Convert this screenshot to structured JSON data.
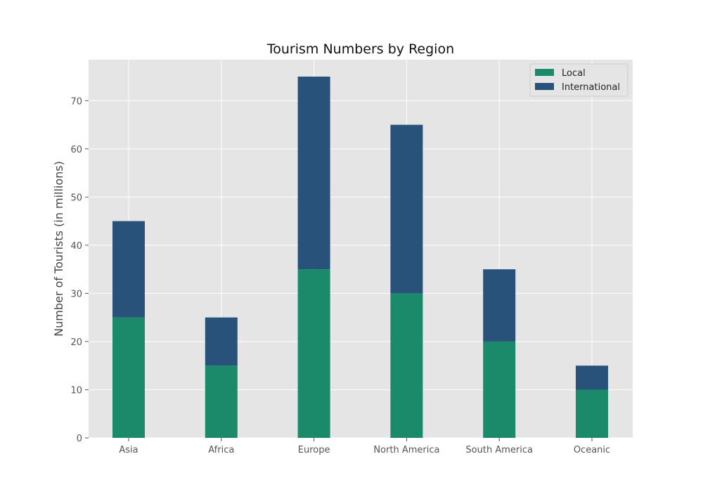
{
  "chart_data": {
    "type": "bar",
    "stacked": true,
    "title": "Tourism Numbers by Region",
    "xlabel": "",
    "ylabel": "Number of Tourists (in millions)",
    "categories": [
      "Asia",
      "Africa",
      "Europe",
      "North America",
      "South America",
      "Oceanic"
    ],
    "series": [
      {
        "name": "Local",
        "values": [
          25,
          15,
          35,
          30,
          20,
          10
        ],
        "color": "#1b8a6b"
      },
      {
        "name": "International",
        "values": [
          20,
          10,
          40,
          35,
          15,
          5
        ],
        "color": "#285279"
      }
    ],
    "ylim": [
      0,
      78.5
    ],
    "yticks": [
      0,
      10,
      20,
      30,
      40,
      50,
      60,
      70
    ],
    "grid": true,
    "legend_position": "top-right",
    "plot_background": "#e5e5e5",
    "grid_color": "#ffffff"
  }
}
